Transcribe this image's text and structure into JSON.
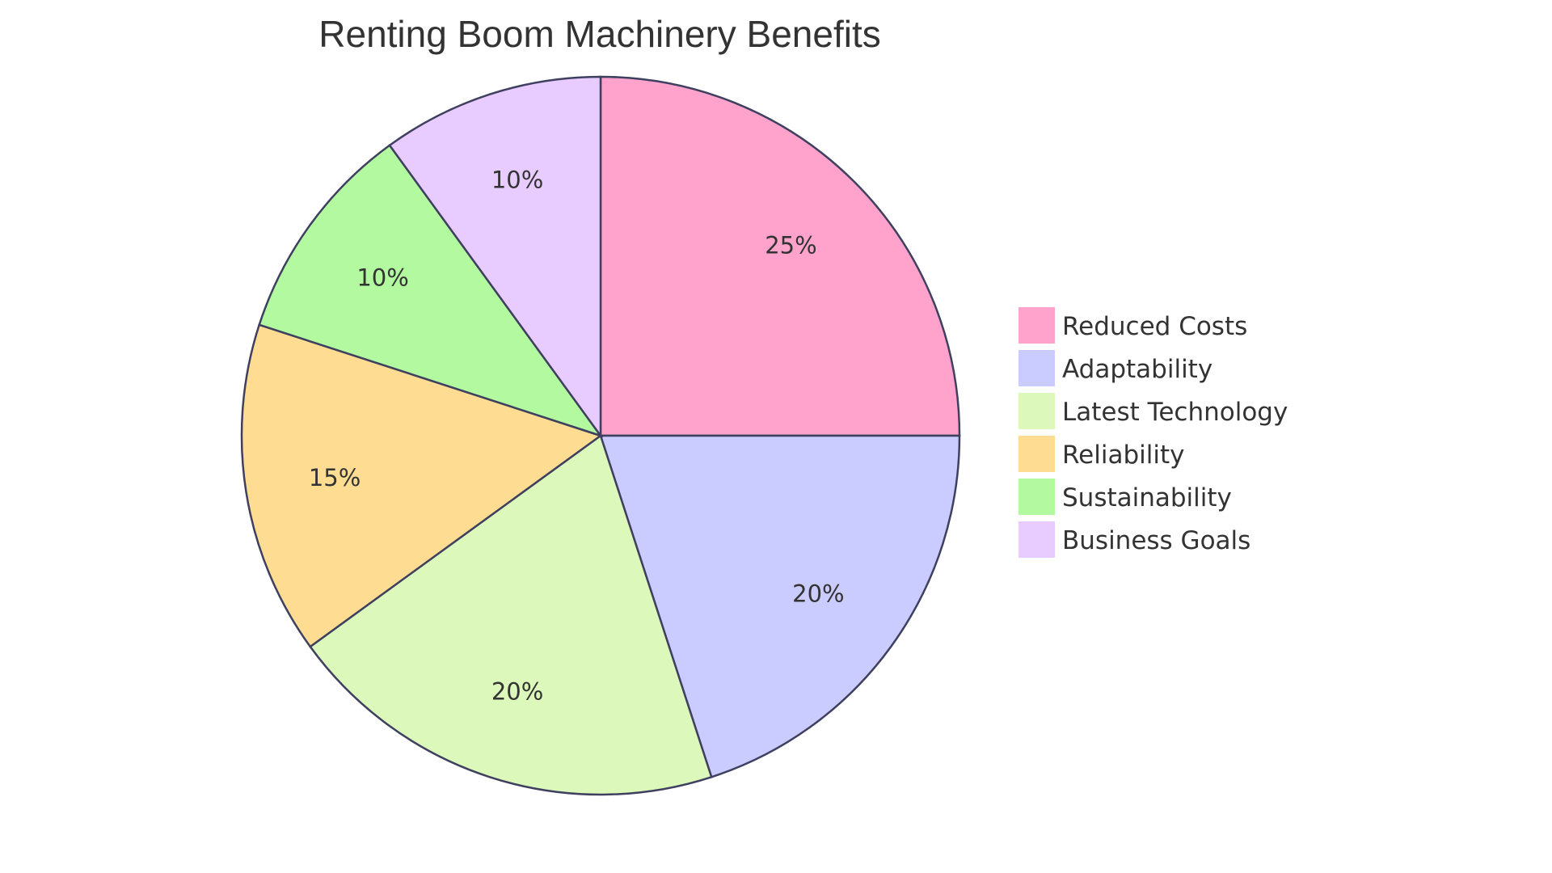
{
  "chart_data": {
    "type": "pie",
    "title": "Renting Boom Machinery Benefits",
    "categories": [
      "Reduced Costs",
      "Adaptability",
      "Latest Technology",
      "Reliability",
      "Sustainability",
      "Business Goals"
    ],
    "values": [
      25,
      20,
      20,
      15,
      10,
      10
    ],
    "labels": [
      "25%",
      "20%",
      "20%",
      "15%",
      "10%",
      "10%"
    ],
    "colors": [
      "#FFA3CD",
      "#CACCFF",
      "#DCF8BA",
      "#FEDD93",
      "#B3F9A0",
      "#E8CBFF"
    ],
    "stroke_color": "#3F405F",
    "legend_position": "right"
  }
}
